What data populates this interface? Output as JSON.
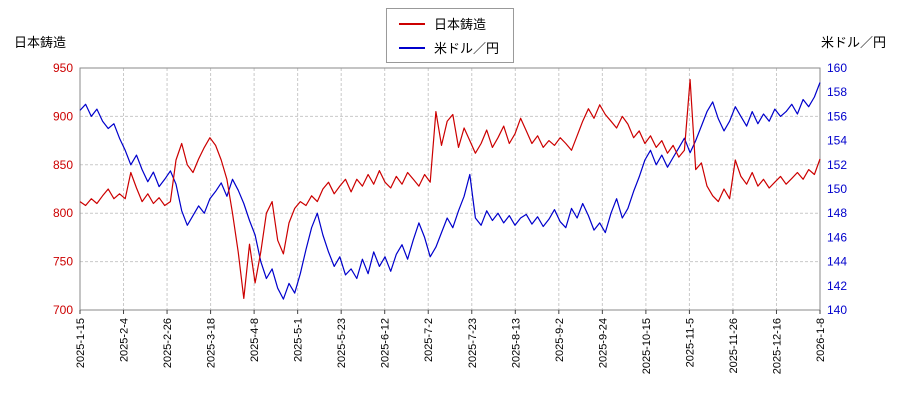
{
  "titles": {
    "left": "日本鋳造",
    "right": "米ドル／円"
  },
  "legend": {
    "items": [
      {
        "label": "日本鋳造",
        "color": "#cc0000"
      },
      {
        "label": "米ドル／円",
        "color": "#0000cc"
      }
    ]
  },
  "chart_data": {
    "type": "line",
    "title": "",
    "grid": {
      "show": true,
      "color": "#c9c9c9",
      "style": "dashed"
    },
    "x_tick_labels": [
      "2025-1-15",
      "2025-2-4",
      "2025-2-26",
      "2025-3-18",
      "2025-4-8",
      "2025-5-1",
      "2025-5-23",
      "2025-6-12",
      "2025-7-2",
      "2025-7-23",
      "2025-8-13",
      "2025-9-2",
      "2025-9-24",
      "2025-10-15",
      "2025-11-5",
      "2025-11-26",
      "2025-12-16",
      "2026-1-8"
    ],
    "left_axis": {
      "title": "日本鋳造",
      "min": 700,
      "max": 950,
      "tick_step": 50,
      "ticks": [
        700,
        750,
        800,
        850,
        900,
        950
      ],
      "color": "#cc0000"
    },
    "right_axis": {
      "title": "米ドル／円",
      "min": 140,
      "max": 160,
      "tick_step": 2,
      "ticks": [
        140,
        142,
        144,
        146,
        148,
        150,
        152,
        154,
        156,
        158,
        160
      ],
      "color": "#0000cc"
    },
    "series": [
      {
        "name": "日本鋳造",
        "axis": "left",
        "color": "#cc0000",
        "values": [
          812,
          808,
          815,
          810,
          818,
          825,
          815,
          820,
          815,
          842,
          826,
          812,
          820,
          810,
          816,
          808,
          812,
          855,
          872,
          850,
          842,
          856,
          868,
          878,
          870,
          855,
          835,
          800,
          760,
          712,
          768,
          728,
          760,
          800,
          812,
          772,
          758,
          790,
          805,
          812,
          808,
          818,
          812,
          825,
          832,
          820,
          828,
          835,
          822,
          835,
          828,
          840,
          830,
          844,
          832,
          826,
          838,
          830,
          842,
          835,
          828,
          840,
          832,
          905,
          870,
          895,
          902,
          868,
          888,
          875,
          862,
          872,
          886,
          868,
          878,
          890,
          872,
          882,
          898,
          885,
          872,
          880,
          868,
          875,
          870,
          878,
          872,
          865,
          880,
          895,
          908,
          898,
          912,
          902,
          895,
          888,
          900,
          892,
          878,
          885,
          872,
          880,
          868,
          875,
          862,
          870,
          858,
          865,
          938,
          845,
          852,
          828,
          818,
          812,
          825,
          815,
          855,
          838,
          830,
          842,
          828,
          835,
          826,
          832,
          838,
          830,
          836,
          842,
          835,
          845,
          840,
          856
        ]
      },
      {
        "name": "米ドル／円",
        "axis": "right",
        "color": "#0000cc",
        "values": [
          156.5,
          157.0,
          156.0,
          156.6,
          155.6,
          155.0,
          155.4,
          154.2,
          153.2,
          152.0,
          152.8,
          151.6,
          150.6,
          151.4,
          150.2,
          150.8,
          151.5,
          150.4,
          148.2,
          147.0,
          147.8,
          148.6,
          148.0,
          149.2,
          149.8,
          150.5,
          149.4,
          150.8,
          149.9,
          148.8,
          147.4,
          146.2,
          144.0,
          142.6,
          143.4,
          141.8,
          140.9,
          142.2,
          141.4,
          143.0,
          145.0,
          146.8,
          148.0,
          146.2,
          144.8,
          143.6,
          144.4,
          142.9,
          143.4,
          142.6,
          144.2,
          143.0,
          144.8,
          143.6,
          144.4,
          143.2,
          144.6,
          145.4,
          144.2,
          145.8,
          147.2,
          146.0,
          144.4,
          145.2,
          146.4,
          147.6,
          146.8,
          148.2,
          149.4,
          151.2,
          147.6,
          147.0,
          148.2,
          147.4,
          148.0,
          147.2,
          147.8,
          147.0,
          147.6,
          147.9,
          147.1,
          147.7,
          146.9,
          147.5,
          148.3,
          147.3,
          146.8,
          148.4,
          147.6,
          148.8,
          147.8,
          146.6,
          147.2,
          146.4,
          148.0,
          149.2,
          147.6,
          148.4,
          149.8,
          151.0,
          152.4,
          153.2,
          152.0,
          152.8,
          151.8,
          152.6,
          153.4,
          154.2,
          153.0,
          154.0,
          155.2,
          156.4,
          157.2,
          155.8,
          154.8,
          155.6,
          156.8,
          156.0,
          155.2,
          156.4,
          155.4,
          156.2,
          155.6,
          156.6,
          156.0,
          156.4,
          157.0,
          156.2,
          157.4,
          156.8,
          157.6,
          158.8
        ]
      }
    ]
  }
}
